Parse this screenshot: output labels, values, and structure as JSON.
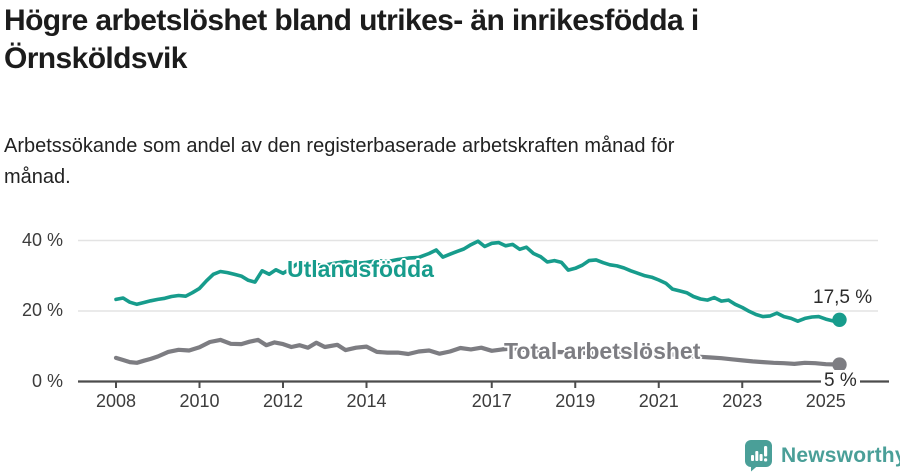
{
  "header": {
    "title": "Högre arbetslöshet bland utrikes- än inrikesfödda i Örnsköldsvik",
    "subtitle": "Arbetssökande som andel av den registerbaserade arbetskraften månad för månad."
  },
  "chart_data": {
    "type": "line",
    "unit": "%",
    "grid": "horizontal",
    "legend_position": "inline-on-line",
    "xlim": [
      2008,
      2025.4
    ],
    "ylim": [
      0,
      42
    ],
    "x_ticks": [
      {
        "year": 2008,
        "label": "2008"
      },
      {
        "year": 2010,
        "label": "2010"
      },
      {
        "year": 2012,
        "label": "2012"
      },
      {
        "year": 2014,
        "label": "2014"
      },
      {
        "year": 2017,
        "label": "2017"
      },
      {
        "year": 2019,
        "label": "2019"
      },
      {
        "year": 2021,
        "label": "2021"
      },
      {
        "year": 2023,
        "label": "2023"
      },
      {
        "year": 2025,
        "label": "2025"
      }
    ],
    "y_ticks": [
      {
        "value": 40,
        "label": "40 %"
      },
      {
        "value": 20,
        "label": "20 %"
      },
      {
        "value": 0,
        "label": "0 %"
      }
    ],
    "series": [
      {
        "name": "Utlandsfödda",
        "color": "#179c8c",
        "end_label": "17,5 %",
        "end_value": 17.5,
        "points": [
          [
            2008.0,
            23.3
          ],
          [
            2008.17,
            23.7
          ],
          [
            2008.33,
            22.5
          ],
          [
            2008.5,
            21.9
          ],
          [
            2008.67,
            22.4
          ],
          [
            2008.83,
            22.9
          ],
          [
            2009.0,
            23.3
          ],
          [
            2009.17,
            23.6
          ],
          [
            2009.33,
            24.1
          ],
          [
            2009.5,
            24.4
          ],
          [
            2009.67,
            24.2
          ],
          [
            2009.83,
            25.2
          ],
          [
            2010.0,
            26.4
          ],
          [
            2010.17,
            28.6
          ],
          [
            2010.33,
            30.4
          ],
          [
            2010.5,
            31.2
          ],
          [
            2010.67,
            30.9
          ],
          [
            2010.83,
            30.4
          ],
          [
            2011.0,
            29.9
          ],
          [
            2011.17,
            28.7
          ],
          [
            2011.33,
            28.2
          ],
          [
            2011.5,
            31.4
          ],
          [
            2011.67,
            30.4
          ],
          [
            2011.83,
            31.7
          ],
          [
            2012.0,
            30.7
          ],
          [
            2012.17,
            31.9
          ],
          [
            2012.33,
            33.3
          ],
          [
            2012.5,
            33.6
          ],
          [
            2012.67,
            32.7
          ],
          [
            2012.83,
            33.1
          ],
          [
            2013.0,
            33.0
          ],
          [
            2013.25,
            33.6
          ],
          [
            2013.5,
            34.0
          ],
          [
            2013.75,
            33.5
          ],
          [
            2014.0,
            33.8
          ],
          [
            2014.25,
            34.3
          ],
          [
            2014.5,
            34.0
          ],
          [
            2014.75,
            34.6
          ],
          [
            2015.0,
            35.0
          ],
          [
            2015.25,
            35.2
          ],
          [
            2015.5,
            36.3
          ],
          [
            2015.67,
            37.3
          ],
          [
            2015.83,
            35.3
          ],
          [
            2016.0,
            36.1
          ],
          [
            2016.17,
            36.9
          ],
          [
            2016.33,
            37.6
          ],
          [
            2016.5,
            38.8
          ],
          [
            2016.67,
            39.8
          ],
          [
            2016.83,
            38.3
          ],
          [
            2017.0,
            39.2
          ],
          [
            2017.17,
            39.4
          ],
          [
            2017.33,
            38.5
          ],
          [
            2017.5,
            38.9
          ],
          [
            2017.67,
            37.5
          ],
          [
            2017.83,
            38.1
          ],
          [
            2018.0,
            36.3
          ],
          [
            2018.17,
            35.4
          ],
          [
            2018.33,
            33.9
          ],
          [
            2018.5,
            34.3
          ],
          [
            2018.67,
            33.8
          ],
          [
            2018.83,
            31.6
          ],
          [
            2019.0,
            32.1
          ],
          [
            2019.17,
            33.0
          ],
          [
            2019.33,
            34.3
          ],
          [
            2019.5,
            34.5
          ],
          [
            2019.67,
            33.7
          ],
          [
            2019.83,
            33.1
          ],
          [
            2020.0,
            32.8
          ],
          [
            2020.17,
            32.2
          ],
          [
            2020.33,
            31.4
          ],
          [
            2020.5,
            30.7
          ],
          [
            2020.67,
            30.0
          ],
          [
            2020.83,
            29.6
          ],
          [
            2021.0,
            28.8
          ],
          [
            2021.17,
            27.9
          ],
          [
            2021.33,
            26.2
          ],
          [
            2021.5,
            25.7
          ],
          [
            2021.67,
            25.2
          ],
          [
            2021.83,
            24.1
          ],
          [
            2022.0,
            23.4
          ],
          [
            2022.17,
            23.1
          ],
          [
            2022.33,
            23.8
          ],
          [
            2022.5,
            22.8
          ],
          [
            2022.67,
            23.1
          ],
          [
            2022.83,
            21.9
          ],
          [
            2023.0,
            21.0
          ],
          [
            2023.17,
            19.9
          ],
          [
            2023.33,
            19.0
          ],
          [
            2023.5,
            18.4
          ],
          [
            2023.67,
            18.6
          ],
          [
            2023.83,
            19.4
          ],
          [
            2024.0,
            18.4
          ],
          [
            2024.17,
            17.9
          ],
          [
            2024.33,
            17.1
          ],
          [
            2024.5,
            17.9
          ],
          [
            2024.67,
            18.3
          ],
          [
            2024.83,
            18.4
          ],
          [
            2025.0,
            17.7
          ],
          [
            2025.17,
            17.2
          ],
          [
            2025.33,
            17.5
          ]
        ]
      },
      {
        "name": "Total arbetslöshet",
        "color": "#7d7d82",
        "end_label": "5 %",
        "end_value": 5,
        "points": [
          [
            2008.0,
            6.7
          ],
          [
            2008.17,
            6.1
          ],
          [
            2008.33,
            5.5
          ],
          [
            2008.5,
            5.3
          ],
          [
            2008.67,
            5.9
          ],
          [
            2008.83,
            6.4
          ],
          [
            2009.0,
            7.1
          ],
          [
            2009.25,
            8.4
          ],
          [
            2009.5,
            9.0
          ],
          [
            2009.75,
            8.8
          ],
          [
            2010.0,
            9.7
          ],
          [
            2010.25,
            11.2
          ],
          [
            2010.5,
            11.8
          ],
          [
            2010.75,
            10.7
          ],
          [
            2011.0,
            10.6
          ],
          [
            2011.2,
            11.3
          ],
          [
            2011.4,
            11.8
          ],
          [
            2011.6,
            10.3
          ],
          [
            2011.8,
            11.1
          ],
          [
            2012.0,
            10.6
          ],
          [
            2012.2,
            9.8
          ],
          [
            2012.4,
            10.3
          ],
          [
            2012.6,
            9.6
          ],
          [
            2012.8,
            11.0
          ],
          [
            2013.0,
            9.8
          ],
          [
            2013.3,
            10.4
          ],
          [
            2013.5,
            8.9
          ],
          [
            2013.75,
            9.6
          ],
          [
            2014.0,
            9.9
          ],
          [
            2014.25,
            8.4
          ],
          [
            2014.5,
            8.2
          ],
          [
            2014.75,
            8.2
          ],
          [
            2015.0,
            7.8
          ],
          [
            2015.25,
            8.5
          ],
          [
            2015.5,
            8.8
          ],
          [
            2015.75,
            7.9
          ],
          [
            2016.0,
            8.5
          ],
          [
            2016.25,
            9.5
          ],
          [
            2016.5,
            9.1
          ],
          [
            2016.75,
            9.6
          ],
          [
            2017.0,
            8.7
          ],
          [
            2017.25,
            9.1
          ],
          [
            2017.5,
            9.4
          ],
          [
            2017.75,
            9.0
          ],
          [
            2018.0,
            8.8
          ],
          [
            2018.5,
            8.4
          ],
          [
            2019.0,
            8.2
          ],
          [
            2019.5,
            8.0
          ],
          [
            2020.0,
            8.4
          ],
          [
            2020.5,
            8.6
          ],
          [
            2021.0,
            8.0
          ],
          [
            2021.5,
            7.5
          ],
          [
            2021.9,
            7.1
          ],
          [
            2022.0,
            7.0
          ],
          [
            2022.25,
            6.8
          ],
          [
            2022.5,
            6.6
          ],
          [
            2022.75,
            6.3
          ],
          [
            2023.0,
            6.0
          ],
          [
            2023.25,
            5.7
          ],
          [
            2023.5,
            5.5
          ],
          [
            2023.75,
            5.3
          ],
          [
            2024.0,
            5.2
          ],
          [
            2024.25,
            5.0
          ],
          [
            2024.5,
            5.3
          ],
          [
            2024.75,
            5.2
          ],
          [
            2025.0,
            4.9
          ],
          [
            2025.33,
            4.8
          ]
        ]
      }
    ]
  },
  "footer": {
    "brand": "Newsworthy",
    "brand_color": "#4a9f98"
  }
}
